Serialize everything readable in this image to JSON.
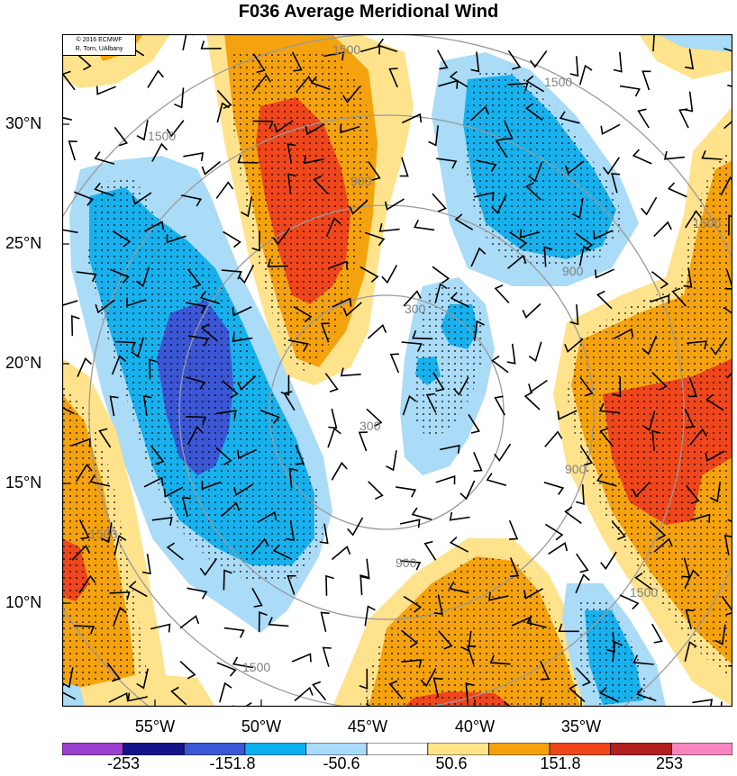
{
  "title": "F036 Average Meridional Wind",
  "credit": [
    "© 2016 ECMWF",
    "R. Torn, UAlbany"
  ],
  "lat_labels": [
    "30°N",
    "25°N",
    "20°N",
    "15°N",
    "10°N"
  ],
  "lon_labels": [
    "55°W",
    "50°W",
    "45°W",
    "40°W",
    "35°W"
  ],
  "contour_labels": [
    "300",
    "300",
    "900",
    "900",
    "900",
    "900",
    "1500",
    "1500",
    "1500",
    "1500",
    "1500",
    "1500",
    "1500"
  ],
  "colorbar": {
    "labels": [
      "-253",
      "-151.8",
      "-50.6",
      "50.6",
      "151.8",
      "253"
    ],
    "colors": [
      "#9b3fd1",
      "#14148a",
      "#3b57d6",
      "#0ab0f0",
      "#a9dcfa",
      "#ffffff",
      "#ffe58a",
      "#f5a20a",
      "#f0461c",
      "#b11f1f",
      "#f786c0"
    ]
  },
  "colors": {
    "strong_negative": "#3b57d6",
    "negative": "#17b1ee",
    "weak_negative": "#aadbf7",
    "weak_positive": "#ffe38c",
    "positive": "#f5a20f",
    "strong_positive": "#f0461c",
    "contour": "#9a9a9a"
  }
}
